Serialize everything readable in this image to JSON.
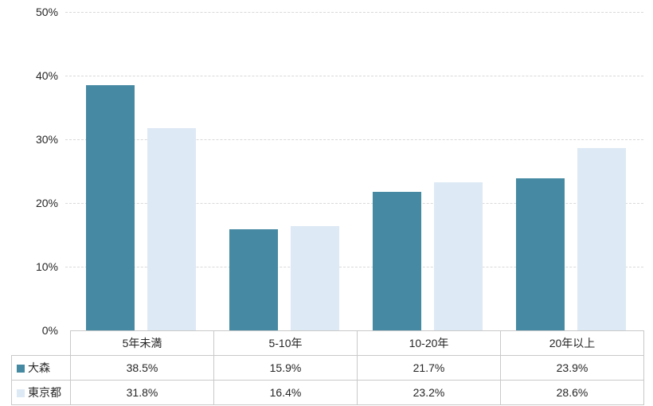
{
  "chart_data": {
    "type": "bar",
    "title": "",
    "categories": [
      "5年未満",
      "5-10年",
      "10-20年",
      "20年以上"
    ],
    "series": [
      {
        "name": "大森",
        "color": "#4589a2",
        "values": [
          38.5,
          15.9,
          21.7,
          23.9
        ]
      },
      {
        "name": "東京都",
        "color": "#dde9f5",
        "values": [
          31.8,
          16.4,
          23.2,
          28.6
        ]
      }
    ],
    "ylabel": "",
    "xlabel": "",
    "ylim": [
      0,
      50
    ],
    "y_ticks": [
      {
        "value": 0,
        "label": "0%"
      },
      {
        "value": 10,
        "label": "10%"
      },
      {
        "value": 20,
        "label": "20%"
      },
      {
        "value": 30,
        "label": "30%"
      },
      {
        "value": 40,
        "label": "40%"
      },
      {
        "value": 50,
        "label": "50%"
      }
    ],
    "grid": "horizontal-dashed",
    "legend_position": "data-table-left-column"
  },
  "data_table": {
    "rows": [
      {
        "label": "大森",
        "values": [
          "38.5%",
          "15.9%",
          "21.7%",
          "23.9%"
        ]
      },
      {
        "label": "東京都",
        "values": [
          "31.8%",
          "16.4%",
          "23.2%",
          "28.6%"
        ]
      }
    ]
  },
  "colors": {
    "grid_line": "#d9d9d9",
    "table_border": "#c9c9c9",
    "text": "#262626",
    "background": "#ffffff"
  }
}
